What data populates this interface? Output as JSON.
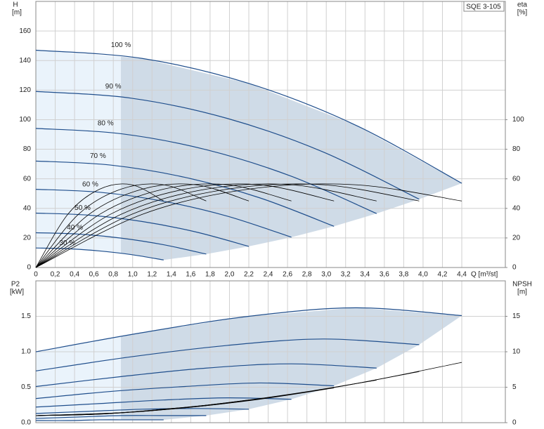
{
  "chart_data": [
    {
      "type": "line",
      "title": "SQE 3-105",
      "xlabel": "Q [m³/st]",
      "ylabel": "H",
      "yunit": "[m]",
      "y2label": "eta",
      "y2unit": "[%]",
      "grid": true,
      "xlim": [
        0,
        4.85
      ],
      "ylim": [
        0,
        180
      ],
      "y2lim": [
        0,
        180
      ],
      "xticks": [
        0,
        {
          "value": 0.2,
          "label": "0,2"
        },
        {
          "value": 0.4,
          "label": "0,4"
        },
        {
          "value": 0.6,
          "label": "0,6"
        },
        {
          "value": 0.8,
          "label": "0,8"
        },
        {
          "value": 1.0,
          "label": "1,0"
        },
        {
          "value": 1.2,
          "label": "1,2"
        },
        {
          "value": 1.4,
          "label": "1,4"
        },
        {
          "value": 1.6,
          "label": "1,6"
        },
        {
          "value": 1.8,
          "label": "1,8"
        },
        {
          "value": 2.0,
          "label": "2,0"
        },
        {
          "value": 2.2,
          "label": "2,2"
        },
        {
          "value": 2.4,
          "label": "2,4"
        },
        {
          "value": 2.6,
          "label": "2,6"
        },
        {
          "value": 2.8,
          "label": "2,8"
        },
        {
          "value": 3.0,
          "label": "3,0"
        },
        {
          "value": 3.2,
          "label": "3,2"
        },
        {
          "value": 3.4,
          "label": "3,4"
        },
        {
          "value": 3.6,
          "label": "3,6"
        },
        {
          "value": 3.8,
          "label": "3,8"
        },
        {
          "value": 4.0,
          "label": "4,0"
        },
        {
          "value": 4.2,
          "label": "4,2"
        },
        {
          "value": 4.4,
          "label": "4,4"
        }
      ],
      "yticks": [
        0,
        20,
        40,
        60,
        80,
        100,
        120,
        140,
        160
      ],
      "y2ticks": [
        0,
        20,
        40,
        60,
        80,
        100
      ],
      "series": [
        {
          "name": "100 %",
          "color": "#1f4e8c",
          "x": [
            0,
            1.1,
            2.2,
            3.3,
            4.4
          ],
          "values": [
            147,
            141.4,
            124.5,
            96.4,
            57.0
          ]
        },
        {
          "name": "90 %",
          "color": "#1f4e8c",
          "x": [
            0,
            0.99,
            1.98,
            2.97,
            3.96
          ],
          "values": [
            119.1,
            114.5,
            100.8,
            78.1,
            46.2
          ]
        },
        {
          "name": "80 %",
          "color": "#1f4e8c",
          "x": [
            0,
            0.88,
            1.76,
            2.64,
            3.52
          ],
          "values": [
            94.1,
            90.5,
            79.7,
            61.7,
            36.5
          ]
        },
        {
          "name": "70 %",
          "color": "#1f4e8c",
          "x": [
            0,
            0.77,
            1.54,
            2.31,
            3.08
          ],
          "values": [
            72.0,
            69.3,
            61.0,
            47.2,
            27.9
          ]
        },
        {
          "name": "60 %",
          "color": "#1f4e8c",
          "x": [
            0,
            0.66,
            1.32,
            1.98,
            2.64
          ],
          "values": [
            52.9,
            50.9,
            44.8,
            34.7,
            20.5
          ]
        },
        {
          "name": "50 %",
          "color": "#1f4e8c",
          "x": [
            0,
            0.55,
            1.1,
            1.65,
            2.2
          ],
          "values": [
            36.8,
            35.4,
            31.1,
            24.1,
            14.3
          ]
        },
        {
          "name": "40 %",
          "color": "#1f4e8c",
          "x": [
            0,
            0.44,
            0.88,
            1.32,
            1.76
          ],
          "values": [
            23.5,
            22.6,
            19.9,
            15.4,
            9.1
          ]
        },
        {
          "name": "30 %",
          "color": "#1f4e8c",
          "x": [
            0,
            0.33,
            0.66,
            0.99,
            1.32
          ],
          "values": [
            13.2,
            12.7,
            11.2,
            8.7,
            5.1
          ]
        },
        {
          "axis": "y2",
          "color": "#000000",
          "x": [
            0,
            1.1,
            2.2,
            3.3,
            4.4
          ],
          "values": [
            0,
            36,
            53,
            56,
            45
          ]
        },
        {
          "axis": "y2",
          "color": "#000000",
          "x": [
            0,
            0.99,
            1.98,
            2.97,
            3.96
          ],
          "values": [
            0,
            36,
            53,
            56,
            45
          ]
        },
        {
          "axis": "y2",
          "color": "#000000",
          "x": [
            0,
            0.88,
            1.76,
            2.64,
            3.52
          ],
          "values": [
            0,
            36,
            53,
            56,
            45
          ]
        },
        {
          "axis": "y2",
          "color": "#000000",
          "x": [
            0,
            0.77,
            1.54,
            2.31,
            3.08
          ],
          "values": [
            0,
            36,
            53,
            56,
            45
          ]
        },
        {
          "axis": "y2",
          "color": "#000000",
          "x": [
            0,
            0.66,
            1.32,
            1.98,
            2.64
          ],
          "values": [
            0,
            36,
            53,
            56,
            45
          ]
        },
        {
          "axis": "y2",
          "color": "#000000",
          "x": [
            0,
            0.55,
            1.1,
            1.65,
            2.2
          ],
          "values": [
            0,
            36,
            53,
            56,
            45
          ]
        },
        {
          "axis": "y2",
          "color": "#000000",
          "x": [
            0,
            0.44,
            0.88,
            1.32,
            1.76
          ],
          "values": [
            0,
            36,
            53,
            56,
            45
          ]
        },
        {
          "axis": "y2",
          "color": "#000000",
          "x": [
            0,
            0.33,
            0.66,
            0.99,
            1.32
          ],
          "values": [
            0,
            36,
            53,
            56,
            45
          ]
        }
      ]
    },
    {
      "type": "line",
      "ylabel": "P2",
      "yunit": "[kW]",
      "y2label": "NPSH",
      "y2unit": "[m]",
      "grid": true,
      "xlim": [
        0,
        4.85
      ],
      "ylim": [
        0,
        2
      ],
      "y2lim": [
        0,
        20
      ],
      "xticks": [
        0,
        0.2,
        0.4,
        0.6,
        0.8,
        1.0,
        1.2,
        1.4,
        1.6,
        1.8,
        2.0,
        2.2,
        2.4,
        2.6,
        2.8,
        3.0,
        3.2,
        3.4,
        3.6,
        3.8,
        4.0,
        4.2,
        4.4
      ],
      "yticks": [
        {
          "value": 0,
          "label": "0.0"
        },
        {
          "value": 0.5,
          "label": "0.5"
        },
        {
          "value": 1.0,
          "label": "1.0"
        },
        {
          "value": 1.5,
          "label": "1.5"
        }
      ],
      "y2ticks": [
        0,
        5,
        10,
        15
      ],
      "series": [
        {
          "color": "#1f4e8c",
          "x": [
            0,
            1.1,
            2.2,
            3.3,
            4.4
          ],
          "values": [
            1.0,
            1.27,
            1.5,
            1.62,
            1.51
          ]
        },
        {
          "color": "#1f4e8c",
          "x": [
            0,
            0.99,
            1.98,
            2.97,
            3.96
          ],
          "values": [
            0.73,
            0.93,
            1.09,
            1.18,
            1.1
          ]
        },
        {
          "color": "#1f4e8c",
          "x": [
            0,
            0.88,
            1.76,
            2.64,
            3.52
          ],
          "values": [
            0.51,
            0.65,
            0.77,
            0.83,
            0.77
          ]
        },
        {
          "color": "#1f4e8c",
          "x": [
            0,
            0.77,
            1.54,
            2.31,
            3.08
          ],
          "values": [
            0.34,
            0.44,
            0.51,
            0.56,
            0.52
          ]
        },
        {
          "color": "#1f4e8c",
          "x": [
            0,
            0.66,
            1.32,
            1.98,
            2.64
          ],
          "values": [
            0.22,
            0.27,
            0.32,
            0.35,
            0.33
          ]
        },
        {
          "color": "#1f4e8c",
          "x": [
            0,
            0.55,
            1.1,
            1.65,
            2.2
          ],
          "values": [
            0.13,
            0.16,
            0.19,
            0.2,
            0.19
          ]
        },
        {
          "color": "#1f4e8c",
          "x": [
            0,
            0.44,
            0.88,
            1.32,
            1.76
          ],
          "values": [
            0.06,
            0.08,
            0.1,
            0.1,
            0.1
          ]
        },
        {
          "color": "#1f4e8c",
          "x": [
            0,
            0.33,
            0.66,
            0.99,
            1.32
          ],
          "values": [
            0.03,
            0.03,
            0.04,
            0.04,
            0.04
          ]
        },
        {
          "axis": "y2",
          "color": "#000000",
          "x": [
            0,
            1.1,
            2.2,
            3.3,
            4.4
          ],
          "values": [
            1.0,
            1.6,
            3.2,
            5.5,
            8.5
          ]
        },
        {
          "axis": "y2",
          "color": "#000000",
          "x": [
            0,
            0.99,
            1.98,
            2.97,
            3.96
          ],
          "values": [
            1.0,
            1.5,
            2.8,
            4.7,
            7.2
          ]
        },
        {
          "axis": "y2",
          "color": "#000000",
          "x": [
            0,
            0.88,
            1.76,
            2.64,
            3.52
          ],
          "values": [
            1.0,
            1.4,
            2.4,
            4.0,
            6.0
          ]
        },
        {
          "axis": "y2",
          "color": "#000000",
          "x": [
            0,
            0.77,
            1.54,
            2.31,
            3.08
          ],
          "values": [
            1.0,
            1.3,
            2.1,
            3.3,
            4.9
          ]
        },
        {
          "axis": "y2",
          "color": "#000000",
          "x": [
            0,
            0.66,
            1.32,
            1.98,
            2.64
          ],
          "values": [
            1.0,
            1.2,
            1.9,
            2.8,
            4.0
          ]
        },
        {
          "axis": "y2",
          "color": "#000000",
          "x": [
            0,
            0.55,
            1.1,
            1.65,
            2.2
          ],
          "values": [
            1.0,
            1.2,
            1.6,
            2.3,
            3.2
          ]
        },
        {
          "axis": "y2",
          "color": "#000000",
          "x": [
            0,
            0.44,
            0.88,
            1.32,
            1.76
          ],
          "values": [
            1.0,
            1.1,
            1.4,
            1.9,
            2.4
          ]
        },
        {
          "axis": "y2",
          "color": "#000000",
          "x": [
            0,
            0.33,
            0.66,
            0.99,
            1.32
          ],
          "values": [
            1.0,
            1.1,
            1.2,
            1.5,
            1.9
          ]
        }
      ]
    }
  ]
}
